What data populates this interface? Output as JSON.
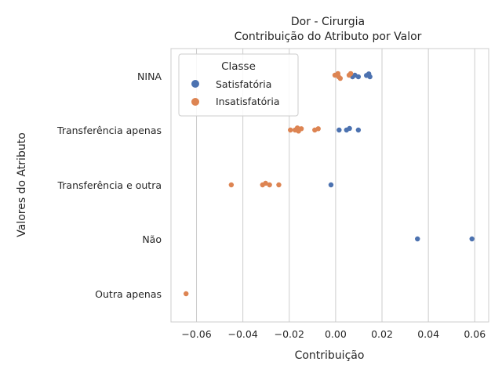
{
  "chart_data": {
    "type": "scatter",
    "title": "Dor - Cirurgia",
    "subtitle": "Contribuição do Atributo por Valor",
    "xlabel": "Contribuição",
    "ylabel": "Valores do Atributo",
    "categories": [
      "NINA",
      "Transferência apenas",
      "Transferência e outra",
      "Não",
      "Outra apenas"
    ],
    "xlim": [
      -0.071,
      0.066
    ],
    "xticks": [
      -0.06,
      -0.04,
      -0.02,
      0.0,
      0.02,
      0.04,
      0.06
    ],
    "xtick_labels": [
      "−0.06",
      "−0.04",
      "−0.02",
      "0.00",
      "0.02",
      "0.04",
      "0.06"
    ],
    "grid": "vertical",
    "legend": {
      "title": "Classe",
      "placement": "top-left"
    },
    "series": [
      {
        "name": "Satisfatória",
        "color": "#4c72b0",
        "points": [
          {
            "category": "NINA",
            "x": 0.0143,
            "jitter": -0.08
          },
          {
            "category": "NINA",
            "x": 0.0083,
            "jitter": -0.03
          },
          {
            "category": "NINA",
            "x": 0.0133,
            "jitter": -0.02
          },
          {
            "category": "NINA",
            "x": 0.0073,
            "jitter": 0.03
          },
          {
            "category": "NINA",
            "x": 0.0098,
            "jitter": 0.03
          },
          {
            "category": "NINA",
            "x": 0.0148,
            "jitter": 0.03
          },
          {
            "category": "Transferência apenas",
            "x": 0.006,
            "jitter": -0.06
          },
          {
            "category": "Transferência apenas",
            "x": 0.0015,
            "jitter": 0.0
          },
          {
            "category": "Transferência apenas",
            "x": 0.0047,
            "jitter": 0.0
          },
          {
            "category": "Transferência apenas",
            "x": 0.0098,
            "jitter": 0.0
          },
          {
            "category": "Transferência e outra",
            "x": -0.002,
            "jitter": 0.0
          },
          {
            "category": "Não",
            "x": 0.0353,
            "jitter": 0.0
          },
          {
            "category": "Não",
            "x": 0.0588,
            "jitter": 0.0
          }
        ]
      },
      {
        "name": "Insatisfatória",
        "color": "#dd8452",
        "points": [
          {
            "category": "NINA",
            "x": 0.001,
            "jitter": -0.09
          },
          {
            "category": "NINA",
            "x": 0.0065,
            "jitter": -0.09
          },
          {
            "category": "NINA",
            "x": -0.0003,
            "jitter": -0.03
          },
          {
            "category": "NINA",
            "x": 0.0058,
            "jitter": -0.03
          },
          {
            "category": "NINA",
            "x": 0.0013,
            "jitter": 0.03
          },
          {
            "category": "NINA",
            "x": 0.002,
            "jitter": 0.09
          },
          {
            "category": "Transferência apenas",
            "x": -0.0165,
            "jitter": -0.08
          },
          {
            "category": "Transferência apenas",
            "x": -0.0075,
            "jitter": -0.05
          },
          {
            "category": "Transferência apenas",
            "x": -0.0148,
            "jitter": -0.05
          },
          {
            "category": "Transferência apenas",
            "x": -0.0195,
            "jitter": 0.0
          },
          {
            "category": "Transferência apenas",
            "x": -0.0175,
            "jitter": 0.0
          },
          {
            "category": "Transferência apenas",
            "x": -0.009,
            "jitter": 0.0
          },
          {
            "category": "Transferência apenas",
            "x": -0.016,
            "jitter": 0.04
          },
          {
            "category": "Transferência e outra",
            "x": -0.0302,
            "jitter": -0.06
          },
          {
            "category": "Transferência e outra",
            "x": -0.045,
            "jitter": 0.0
          },
          {
            "category": "Transferência e outra",
            "x": -0.0315,
            "jitter": 0.0
          },
          {
            "category": "Transferência e outra",
            "x": -0.0285,
            "jitter": 0.0
          },
          {
            "category": "Transferência e outra",
            "x": -0.0245,
            "jitter": 0.0
          },
          {
            "category": "Outra apenas",
            "x": -0.0645,
            "jitter": 0.0
          }
        ]
      }
    ]
  }
}
